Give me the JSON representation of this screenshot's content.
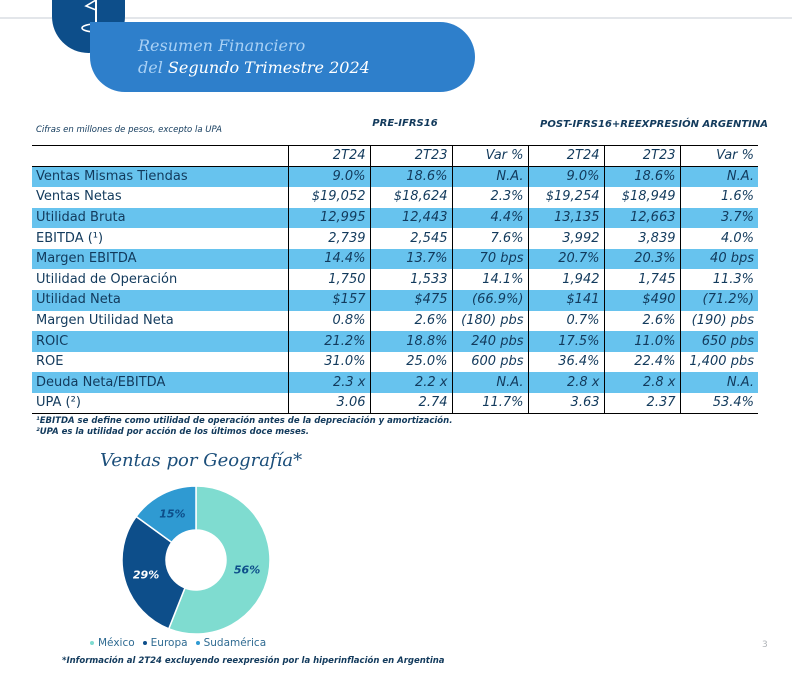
{
  "header": {
    "line1": "Resumen Financiero",
    "line2_prefix": "del",
    "line2_main": "Segundo Trimestre 2024"
  },
  "table": {
    "units_note": "Cifras en millones de pesos, excepto la UPA",
    "group_pre": "PRE-IFRS16",
    "group_post": "POST-IFRS16+REEXPRESIÓN ARGENTINA",
    "columns": [
      "2T24",
      "2T23",
      "Var %",
      "2T24",
      "2T23",
      "Var %"
    ],
    "rows": [
      {
        "label": "Ventas Mismas Tiendas",
        "values": [
          "9.0%",
          "18.6%",
          "N.A.",
          "9.0%",
          "18.6%",
          "N.A."
        ]
      },
      {
        "label": "Ventas Netas",
        "values": [
          "$19,052",
          "$18,624",
          "2.3%",
          "$19,254",
          "$18,949",
          "1.6%"
        ]
      },
      {
        "label": "Utilidad Bruta",
        "values": [
          "12,995",
          "12,443",
          "4.4%",
          "13,135",
          "12,663",
          "3.7%"
        ]
      },
      {
        "label": "EBITDA (¹)",
        "values": [
          "2,739",
          "2,545",
          "7.6%",
          "3,992",
          "3,839",
          "4.0%"
        ]
      },
      {
        "label": "Margen EBITDA",
        "values": [
          "14.4%",
          "13.7%",
          "70 bps",
          "20.7%",
          "20.3%",
          "40 bps"
        ]
      },
      {
        "label": "Utilidad de Operación",
        "values": [
          "1,750",
          "1,533",
          "14.1%",
          "1,942",
          "1,745",
          "11.3%"
        ]
      },
      {
        "label": "Utilidad Neta",
        "values": [
          "$157",
          "$475",
          "(66.9%)",
          "$141",
          "$490",
          "(71.2%)"
        ]
      },
      {
        "label": "Margen Utilidad Neta",
        "values": [
          "0.8%",
          "2.6%",
          "(180) pbs",
          "0.7%",
          "2.6%",
          "(190) pbs"
        ]
      },
      {
        "label": "ROIC",
        "values": [
          "21.2%",
          "18.8%",
          "240 pbs",
          "17.5%",
          "11.0%",
          "650 pbs"
        ]
      },
      {
        "label": "ROE",
        "values": [
          "31.0%",
          "25.0%",
          "600 pbs",
          "36.4%",
          "22.4%",
          "1,400 pbs"
        ]
      },
      {
        "label": "Deuda Neta/EBITDA",
        "values": [
          "2.3 x",
          "2.2 x",
          "N.A.",
          "2.8 x",
          "2.8 x",
          "N.A."
        ]
      },
      {
        "label": "UPA (²)",
        "values": [
          "3.06",
          "2.74",
          "11.7%",
          "3.63",
          "2.37",
          "53.4%"
        ]
      }
    ]
  },
  "footnotes": {
    "note1": "¹EBITDA se define como utilidad de operación antes de la depreciación y amortización.",
    "note2": "²UPA es la utilidad por acción de los últimos doce meses."
  },
  "geography": {
    "title": "Ventas por Geografía*",
    "disclaimer": "*Información al 2T24 excluyendo reexpresión por la hiperinflación en Argentina"
  },
  "chart_data": {
    "type": "pie",
    "title": "Ventas por Geografía*",
    "categories": [
      "México",
      "Europa",
      "Sudamérica"
    ],
    "values": [
      56,
      29,
      15
    ],
    "labels": [
      "56%",
      "29%",
      "15%"
    ],
    "colors": [
      "#7fdcd0",
      "#0d4e8a",
      "#2f9ad2"
    ],
    "legend": "bottom"
  },
  "page": {
    "number": "3"
  }
}
